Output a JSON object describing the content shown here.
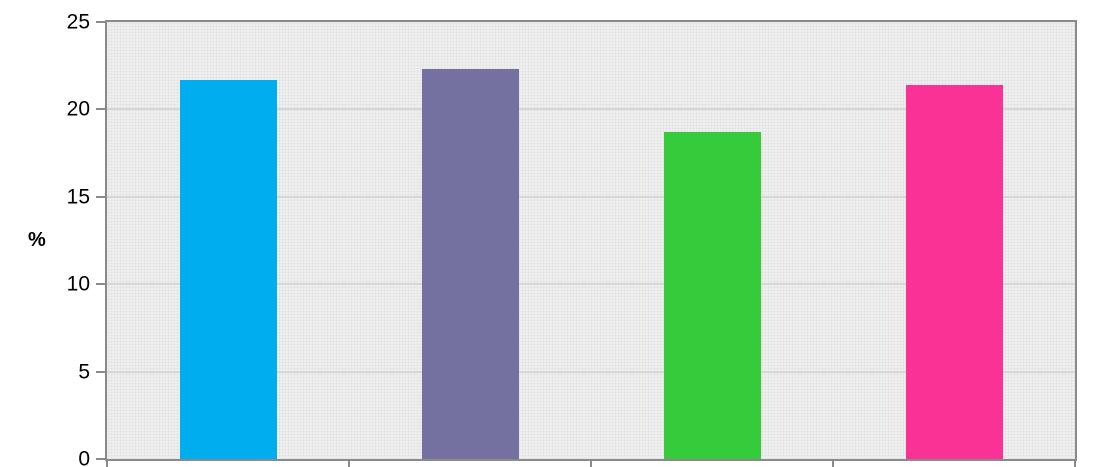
{
  "chart_data": {
    "type": "bar",
    "title": "",
    "categories": [
      "",
      "",
      "",
      ""
    ],
    "values": [
      21.7,
      22.3,
      18.7,
      21.4
    ],
    "bar_colors": [
      "#00AEEF",
      "#7471A0",
      "#35CB3A",
      "#FB3296"
    ],
    "xlabel": "",
    "ylabel": "%",
    "ylim": [
      0,
      25
    ],
    "yticks": [
      0,
      5,
      10,
      15,
      20,
      25
    ],
    "grid": "horizontal",
    "legend": "none",
    "plot_background": "#E9E9E9",
    "gridline_color": "#D6D6D6",
    "axis_color": "#8A8A8A",
    "tick_label_color": "#000000"
  }
}
